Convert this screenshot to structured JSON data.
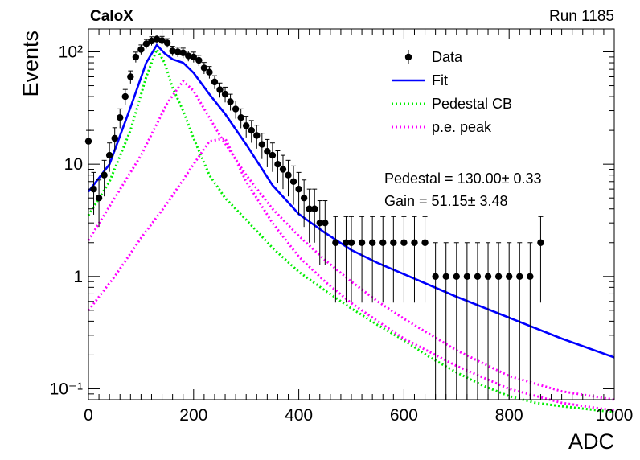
{
  "header": {
    "left": "CaloX",
    "right": "Run 1185"
  },
  "fit_results": {
    "pedestal": "Pedestal = 130.00± 0.33",
    "gain": "Gain = 51.15± 3.48"
  },
  "chart_data": {
    "type": "scatter",
    "xlabel": "ADC",
    "ylabel": "Events",
    "xlim": [
      0,
      1000
    ],
    "ylim": [
      0.08,
      160
    ],
    "yscale": "log",
    "grid": false,
    "legend_position": "top-right",
    "x_ticks": [
      {
        "value": 0,
        "label": "0"
      },
      {
        "value": 200,
        "label": "200"
      },
      {
        "value": 400,
        "label": "400"
      },
      {
        "value": 600,
        "label": "600"
      },
      {
        "value": 800,
        "label": "800"
      },
      {
        "value": 1000,
        "label": "1000"
      }
    ],
    "y_ticks": [
      {
        "value": 0.1,
        "label": "10⁻¹"
      },
      {
        "value": 1,
        "label": "1"
      },
      {
        "value": 10,
        "label": "10"
      },
      {
        "value": 100,
        "label": "10²"
      }
    ],
    "legend": [
      {
        "label": "Data",
        "style": "marker",
        "color": "#000000"
      },
      {
        "label": "Fit",
        "style": "solid",
        "color": "#0000ff"
      },
      {
        "label": "Pedestal CB",
        "style": "dotted",
        "color": "#00ee00"
      },
      {
        "label": "p.e. peak",
        "style": "dotted",
        "color": "#ff00ff"
      }
    ],
    "series": [
      {
        "name": "Data",
        "kind": "points",
        "color": "#000000",
        "x": [
          0,
          10,
          20,
          30,
          40,
          50,
          60,
          70,
          80,
          90,
          100,
          110,
          120,
          130,
          140,
          150,
          160,
          170,
          180,
          190,
          200,
          210,
          220,
          230,
          240,
          250,
          260,
          270,
          280,
          290,
          300,
          310,
          320,
          330,
          340,
          350,
          360,
          370,
          380,
          390,
          400,
          410,
          420,
          430,
          440,
          450,
          470,
          490,
          500,
          520,
          540,
          560,
          580,
          600,
          620,
          640,
          660,
          680,
          700,
          720,
          740,
          760,
          780,
          800,
          820,
          840,
          860
        ],
        "y": [
          16,
          6,
          5,
          8,
          12,
          17,
          26,
          40,
          60,
          90,
          105,
          118,
          125,
          130,
          126,
          120,
          102,
          100,
          98,
          92,
          90,
          84,
          72,
          66,
          54,
          46,
          42,
          36,
          31,
          26,
          22,
          20,
          18,
          15,
          13,
          12,
          10,
          9,
          8,
          7,
          6,
          5,
          4,
          4,
          3,
          3,
          2,
          2,
          2,
          2,
          2,
          2,
          2,
          2,
          2,
          2,
          1,
          1,
          1,
          1,
          1,
          1,
          1,
          1,
          1,
          1,
          2
        ]
      },
      {
        "name": "Fit",
        "kind": "line",
        "color": "#0000ff",
        "x": [
          0,
          40,
          80,
          110,
          130,
          145,
          160,
          180,
          200,
          230,
          260,
          300,
          350,
          400,
          450,
          500,
          550,
          600,
          700,
          800,
          900,
          1000
        ],
        "y": [
          5.7,
          10,
          32,
          80,
          115,
          97,
          86,
          80,
          65,
          42,
          28,
          15,
          6.5,
          3.6,
          2.45,
          1.72,
          1.32,
          1.05,
          0.66,
          0.43,
          0.28,
          0.19
        ]
      },
      {
        "name": "Pedestal CB",
        "kind": "line",
        "color": "#00ee00",
        "x": [
          0,
          40,
          80,
          110,
          130,
          145,
          160,
          180,
          200,
          230,
          260,
          300,
          350,
          400,
          450,
          500,
          550,
          600,
          650,
          700,
          750,
          800,
          850,
          900,
          1000
        ],
        "y": [
          3.5,
          7,
          20,
          60,
          105,
          80,
          48,
          30,
          17,
          8,
          5,
          3.2,
          1.8,
          1.1,
          0.75,
          0.52,
          0.37,
          0.27,
          0.19,
          0.14,
          0.107,
          0.086,
          0.075,
          0.07,
          0.062
        ]
      },
      {
        "name": "p.e. peak",
        "kind": "line",
        "color": "#ff00ff",
        "x": [
          0,
          50,
          100,
          150,
          180,
          200,
          250,
          300,
          350,
          400,
          450,
          500,
          550,
          600,
          700,
          800,
          900,
          1000
        ],
        "y": [
          2.1,
          5,
          12,
          35,
          55,
          45,
          18,
          8,
          4,
          2.3,
          1.4,
          0.9,
          0.6,
          0.42,
          0.22,
          0.13,
          0.095,
          0.08
        ]
      },
      {
        "name": "p.e. peak",
        "kind": "line",
        "color": "#ff00ff",
        "x": [
          0,
          50,
          100,
          150,
          200,
          230,
          260,
          300,
          350,
          400,
          450,
          500,
          550,
          600,
          700,
          800,
          900,
          1000
        ],
        "y": [
          0.5,
          1,
          2.2,
          4.5,
          10,
          16,
          17,
          7,
          3,
          1.5,
          0.9,
          0.58,
          0.4,
          0.28,
          0.16,
          0.1,
          0.075,
          0.064
        ]
      }
    ]
  }
}
